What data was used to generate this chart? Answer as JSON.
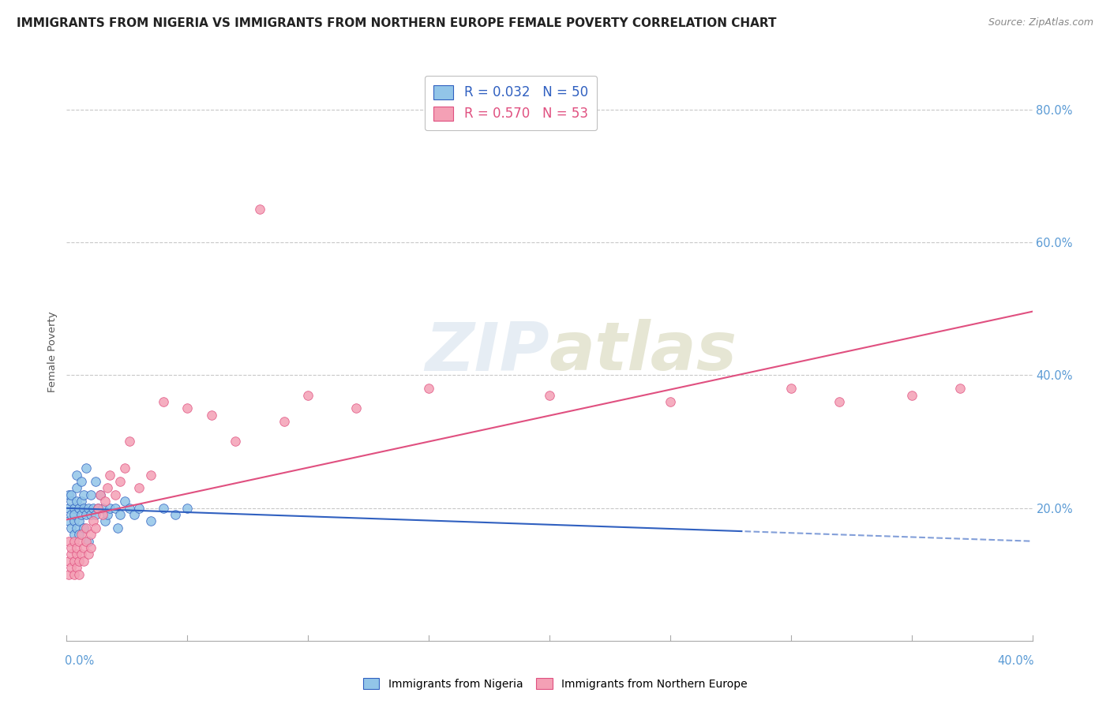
{
  "title": "IMMIGRANTS FROM NIGERIA VS IMMIGRANTS FROM NORTHERN EUROPE FEMALE POVERTY CORRELATION CHART",
  "source": "Source: ZipAtlas.com",
  "legend_nigeria": "Immigrants from Nigeria",
  "legend_northern": "Immigrants from Northern Europe",
  "R_nigeria": "0.032",
  "N_nigeria": "50",
  "R_northern": "0.570",
  "N_northern": "53",
  "nigeria_color": "#92C5E8",
  "northern_color": "#F4A0B5",
  "nigeria_line_color": "#3060C0",
  "northern_line_color": "#E05080",
  "background_color": "#FFFFFF",
  "nigeria_x": [
    0.001,
    0.001,
    0.001,
    0.002,
    0.002,
    0.002,
    0.002,
    0.003,
    0.003,
    0.003,
    0.003,
    0.004,
    0.004,
    0.004,
    0.004,
    0.005,
    0.005,
    0.005,
    0.006,
    0.006,
    0.006,
    0.007,
    0.007,
    0.007,
    0.008,
    0.008,
    0.009,
    0.009,
    0.01,
    0.01,
    0.011,
    0.012,
    0.012,
    0.013,
    0.014,
    0.015,
    0.016,
    0.017,
    0.018,
    0.02,
    0.021,
    0.022,
    0.024,
    0.026,
    0.028,
    0.03,
    0.035,
    0.04,
    0.045,
    0.05
  ],
  "nigeria_y": [
    0.18,
    0.2,
    0.22,
    0.17,
    0.19,
    0.21,
    0.22,
    0.18,
    0.2,
    0.16,
    0.19,
    0.17,
    0.21,
    0.23,
    0.25,
    0.18,
    0.2,
    0.16,
    0.19,
    0.21,
    0.24,
    0.2,
    0.22,
    0.17,
    0.19,
    0.26,
    0.2,
    0.15,
    0.19,
    0.22,
    0.2,
    0.19,
    0.24,
    0.2,
    0.22,
    0.2,
    0.18,
    0.19,
    0.2,
    0.2,
    0.17,
    0.19,
    0.21,
    0.2,
    0.19,
    0.2,
    0.18,
    0.2,
    0.19,
    0.2
  ],
  "northern_x": [
    0.001,
    0.001,
    0.001,
    0.002,
    0.002,
    0.002,
    0.003,
    0.003,
    0.003,
    0.004,
    0.004,
    0.004,
    0.005,
    0.005,
    0.005,
    0.006,
    0.006,
    0.007,
    0.007,
    0.008,
    0.008,
    0.009,
    0.01,
    0.01,
    0.011,
    0.012,
    0.013,
    0.014,
    0.015,
    0.016,
    0.017,
    0.018,
    0.02,
    0.022,
    0.024,
    0.026,
    0.03,
    0.035,
    0.04,
    0.05,
    0.06,
    0.07,
    0.08,
    0.09,
    0.1,
    0.12,
    0.15,
    0.2,
    0.25,
    0.3,
    0.32,
    0.35,
    0.37
  ],
  "northern_y": [
    0.15,
    0.12,
    0.1,
    0.13,
    0.11,
    0.14,
    0.12,
    0.1,
    0.15,
    0.13,
    0.11,
    0.14,
    0.12,
    0.15,
    0.1,
    0.13,
    0.16,
    0.14,
    0.12,
    0.15,
    0.17,
    0.13,
    0.16,
    0.14,
    0.18,
    0.17,
    0.2,
    0.22,
    0.19,
    0.21,
    0.23,
    0.25,
    0.22,
    0.24,
    0.26,
    0.3,
    0.23,
    0.25,
    0.36,
    0.35,
    0.34,
    0.3,
    0.65,
    0.33,
    0.37,
    0.35,
    0.38,
    0.37,
    0.36,
    0.38,
    0.36,
    0.37,
    0.38
  ],
  "xlim": [
    0.0,
    0.4
  ],
  "ylim": [
    0.0,
    0.87
  ],
  "ytick_vals": [
    0.2,
    0.4,
    0.6,
    0.8
  ],
  "ytick_labels": [
    "20.0%",
    "40.0%",
    "60.0%",
    "80.0%"
  ],
  "nigeria_cutoff": 0.28,
  "title_fontsize": 11,
  "source_fontsize": 9
}
